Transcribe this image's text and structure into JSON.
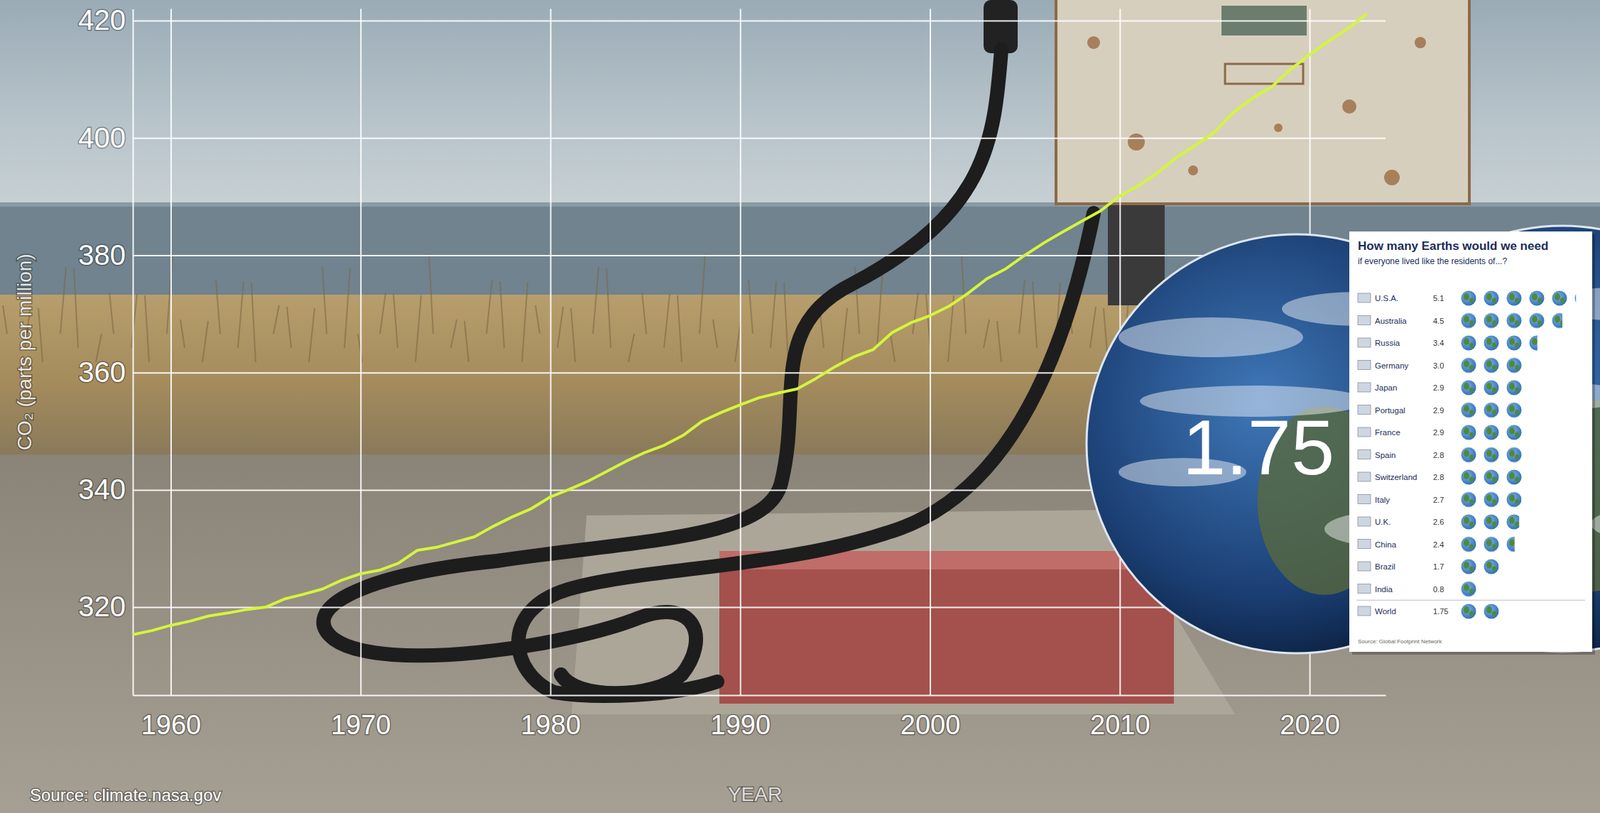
{
  "chart_data": [
    {
      "type": "line",
      "x_label": "YEAR",
      "y_label": "CO₂ (parts per million)",
      "source": "Source: climate.nasa.gov",
      "x": [
        1958,
        1959,
        1960,
        1961,
        1962,
        1963,
        1964,
        1965,
        1966,
        1967,
        1968,
        1969,
        1970,
        1971,
        1972,
        1973,
        1974,
        1975,
        1976,
        1977,
        1978,
        1979,
        1980,
        1981,
        1982,
        1983,
        1984,
        1985,
        1986,
        1987,
        1988,
        1989,
        1990,
        1991,
        1992,
        1993,
        1994,
        1995,
        1996,
        1997,
        1998,
        1999,
        2000,
        2001,
        2002,
        2003,
        2004,
        2005,
        2006,
        2007,
        2008,
        2009,
        2010,
        2011,
        2012,
        2013,
        2014,
        2015,
        2016,
        2017,
        2018,
        2019,
        2020,
        2021,
        2022,
        2023
      ],
      "values": [
        315.3,
        316.0,
        316.9,
        317.6,
        318.5,
        319.0,
        319.6,
        320.0,
        321.4,
        322.2,
        323.1,
        324.6,
        325.7,
        326.3,
        327.5,
        329.7,
        330.2,
        331.1,
        332.0,
        333.8,
        335.4,
        336.8,
        338.8,
        340.1,
        341.5,
        343.2,
        344.9,
        346.4,
        347.6,
        349.3,
        351.7,
        353.2,
        354.5,
        355.7,
        356.5,
        357.2,
        359.0,
        361.0,
        362.7,
        363.9,
        366.8,
        368.5,
        369.7,
        371.3,
        373.5,
        376.0,
        377.7,
        380.0,
        382.1,
        384.0,
        385.8,
        387.6,
        390.1,
        391.9,
        394.1,
        396.7,
        398.8,
        401.0,
        404.4,
        406.8,
        408.7,
        411.7,
        414.2,
        416.5,
        418.6,
        421.1
      ],
      "color": "#d4f53c",
      "xlim": [
        1958,
        2024
      ],
      "xticks": [
        1960,
        1970,
        1980,
        1990,
        2000,
        2010,
        2020
      ],
      "ylim": [
        305,
        422
      ],
      "yticks": [
        320,
        340,
        360,
        380,
        400,
        420
      ],
      "grid": true
    },
    {
      "type": "bar",
      "title": "How many Earths would we need",
      "subtitle": "if everyone lived like the residents of...?",
      "categories": [
        "U.S.A.",
        "Australia",
        "Russia",
        "Germany",
        "Japan",
        "Portugal",
        "France",
        "Spain",
        "Switzerland",
        "Italy",
        "U.K.",
        "China",
        "Brazil",
        "India",
        "World"
      ],
      "values": [
        5.1,
        4.5,
        3.4,
        3.0,
        2.9,
        2.9,
        2.9,
        2.8,
        2.8,
        2.7,
        2.6,
        2.4,
        1.7,
        0.8,
        1.75
      ],
      "value_labels": [
        "5.1",
        "4.5",
        "3.4",
        "3.0",
        "2.9",
        "2.9",
        "2.9",
        "2.8",
        "2.8",
        "2.7",
        "2.6",
        "2.4",
        "1.7",
        "0.8",
        "1.75"
      ],
      "color": "#2f6fb5",
      "orientation": "horizontal",
      "data_labels": true,
      "tick_labels": "y",
      "xlim": [
        0,
        5.5
      ],
      "annotations": [
        "1.75"
      ],
      "source": "Source: Global Footprint Network"
    }
  ]
}
